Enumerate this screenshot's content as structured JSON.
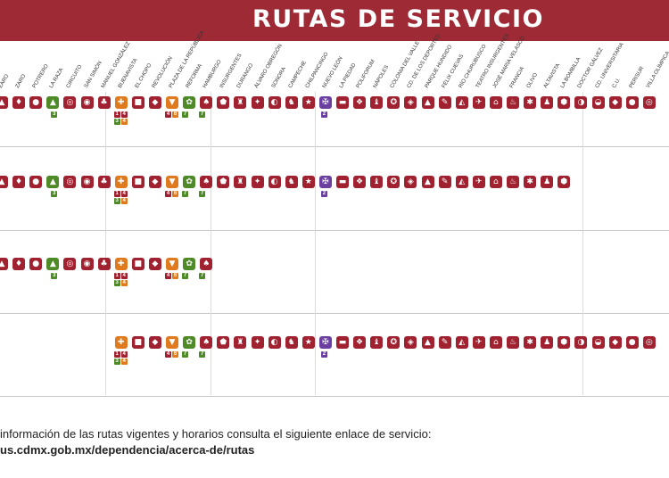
{
  "header": {
    "title": "RUTAS DE SERVICIO"
  },
  "stations": [
    {
      "label": "ZARO",
      "color": "r"
    },
    {
      "label": "ZARO",
      "color": "r"
    },
    {
      "label": "POTRERO",
      "color": "r"
    },
    {
      "label": "LA RAZA",
      "color": "g"
    },
    {
      "label": "CIRCUITO",
      "color": "r"
    },
    {
      "label": "SAN SIMÓN",
      "color": "r"
    },
    {
      "label": "MANUEL GONZÁLEZ",
      "color": "r"
    },
    {
      "label": "BUENAVISTA",
      "color": "o"
    },
    {
      "label": "EL CHOPO",
      "color": "r"
    },
    {
      "label": "REVOLUCIÓN",
      "color": "r"
    },
    {
      "label": "PLAZA DE LA REPÚBLICA",
      "color": "o"
    },
    {
      "label": "REFORMA",
      "color": "g"
    },
    {
      "label": "HAMBURGO",
      "color": "r"
    },
    {
      "label": "INSURGENTES",
      "color": "r"
    },
    {
      "label": "DURANGO",
      "color": "r"
    },
    {
      "label": "ÁLVARO OBREGÓN",
      "color": "r"
    },
    {
      "label": "SONORA",
      "color": "r"
    },
    {
      "label": "CAMPECHE",
      "color": "r"
    },
    {
      "label": "CHILPANCINGO",
      "color": "r"
    },
    {
      "label": "NUEVO LEÓN",
      "color": "p"
    },
    {
      "label": "LA PIEDAD",
      "color": "r"
    },
    {
      "label": "POLIFORUM",
      "color": "r"
    },
    {
      "label": "NÁPOLES",
      "color": "r"
    },
    {
      "label": "COLONIA DEL VALLE",
      "color": "r"
    },
    {
      "label": "CD. DE LOS DEPORTES",
      "color": "r"
    },
    {
      "label": "PARQUE HUNDIDO",
      "color": "r"
    },
    {
      "label": "FÉLIX CUEVAS",
      "color": "r"
    },
    {
      "label": "RÍO CHURUBUSCO",
      "color": "r"
    },
    {
      "label": "TEATRO INSURGENTES",
      "color": "r"
    },
    {
      "label": "JOSÉ MARÍA VELASCO",
      "color": "r"
    },
    {
      "label": "FRANCIA",
      "color": "r"
    },
    {
      "label": "OLIVO",
      "color": "r"
    },
    {
      "label": "ALTAVISTA",
      "color": "r"
    },
    {
      "label": "LA BOMBILLA",
      "color": "r"
    },
    {
      "label": "DOCTOR GÁLVEZ",
      "color": "r"
    },
    {
      "label": "CD. UNIVERSITARIA",
      "color": "r"
    },
    {
      "label": "C.U.",
      "color": "r"
    },
    {
      "label": "PERISUR",
      "color": "r"
    },
    {
      "label": "VILLA OLÍMPICA",
      "color": "r"
    }
  ],
  "icon_glyphs": [
    "▲",
    "♦",
    "●",
    "▲",
    "◎",
    "◉",
    "♣",
    "✚",
    "■",
    "◆",
    "▼",
    "✿",
    "♠",
    "⬟",
    "♜",
    "✦",
    "◐",
    "♞",
    "★",
    "✠",
    "▬",
    "❖",
    "♝",
    "✪",
    "◈",
    "▲",
    "✎",
    "◭",
    "✈",
    "⌂",
    "♨",
    "✱",
    "♟",
    "⬢",
    "◑",
    "◒",
    "◆",
    "●",
    "◎"
  ],
  "badges": {
    "la_raza": [
      "3"
    ],
    "buenavista": [
      "1",
      "4"
    ],
    "buenavista_lower": [
      "3",
      "4"
    ],
    "plaza": [
      "4",
      "6",
      "7"
    ],
    "reforma": [
      "7"
    ],
    "nuevo_leon": [
      "2"
    ]
  },
  "routes": [
    {
      "start": 0,
      "end": 38
    },
    {
      "start": 0,
      "end": 33
    },
    {
      "start": 0,
      "end": 12
    },
    {
      "start": 7,
      "end": 38
    }
  ],
  "footer": {
    "line1": "información de las rutas vigentes y horarios consulta el siguiente enlace de servicio:",
    "line2": "us.cdmx.gob.mx/dependencia/acerca-de/rutas"
  },
  "colors": {
    "r": "#a0212f",
    "g": "#4f8a28",
    "o": "#e07a1f",
    "p": "#6a3fa0",
    "banner": "#9e2a35"
  }
}
